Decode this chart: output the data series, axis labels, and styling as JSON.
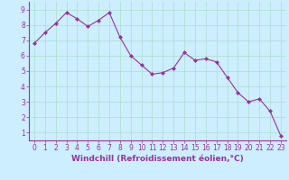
{
  "x": [
    0,
    1,
    2,
    3,
    4,
    5,
    6,
    7,
    8,
    9,
    10,
    11,
    12,
    13,
    14,
    15,
    16,
    17,
    18,
    19,
    20,
    21,
    22,
    23
  ],
  "y": [
    6.8,
    7.5,
    8.1,
    8.8,
    8.4,
    7.9,
    8.3,
    8.8,
    7.2,
    6.0,
    5.4,
    4.8,
    4.9,
    5.2,
    6.2,
    5.7,
    5.8,
    5.6,
    4.6,
    3.6,
    3.0,
    3.2,
    2.4,
    0.8
  ],
  "line_color": "#993399",
  "marker": "D",
  "marker_size": 2.0,
  "bg_color": "#cceeff",
  "grid_color": "#aaddcc",
  "xlabel": "Windchill (Refroidissement éolien,°C)",
  "xlabel_fontsize": 6.5,
  "ylabel_ticks": [
    1,
    2,
    3,
    4,
    5,
    6,
    7,
    8,
    9
  ],
  "xlim": [
    -0.5,
    23.5
  ],
  "ylim": [
    0.5,
    9.5
  ],
  "tick_fontsize": 5.5
}
